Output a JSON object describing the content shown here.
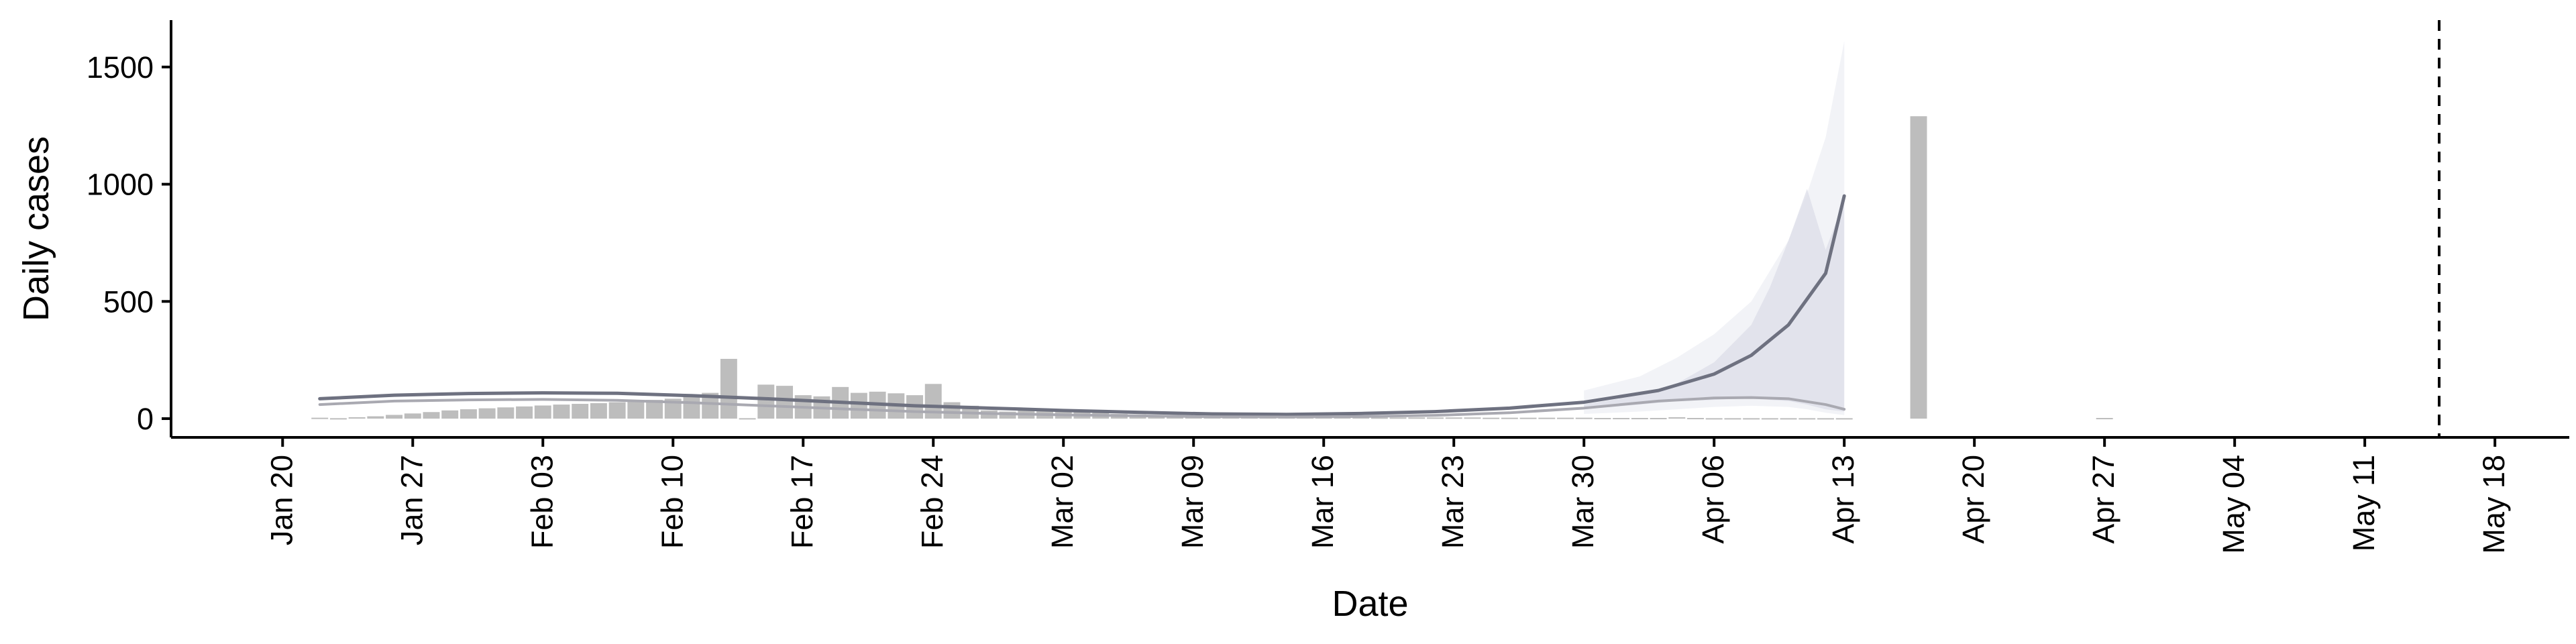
{
  "chart_data": {
    "type": "bar",
    "xlabel": "Date",
    "ylabel": "Daily cases",
    "ylim": [
      -80,
      1700
    ],
    "xlim": [
      "2020-01-14",
      "2020-05-22"
    ],
    "yticks": [
      0,
      500,
      1000,
      1500
    ],
    "xticks": [
      "2020-01-20",
      "2020-01-27",
      "2020-02-03",
      "2020-02-10",
      "2020-02-17",
      "2020-02-24",
      "2020-03-02",
      "2020-03-09",
      "2020-03-16",
      "2020-03-23",
      "2020-03-30",
      "2020-04-06",
      "2020-04-13",
      "2020-04-20",
      "2020-04-27",
      "2020-05-04",
      "2020-05-11",
      "2020-05-18"
    ],
    "xtick_labels": [
      "Jan 20",
      "Jan 27",
      "Feb 03",
      "Feb 10",
      "Feb 17",
      "Feb 24",
      "Mar 02",
      "Mar 09",
      "Mar 16",
      "Mar 23",
      "Mar 30",
      "Apr 06",
      "Apr 13",
      "Apr 20",
      "Apr 27",
      "May 04",
      "May 11",
      "May 18"
    ],
    "vline": "2020-05-15",
    "grid": false,
    "legend": "none",
    "colors": {
      "bars": "#bdbdbd",
      "median_line": "#6e7180",
      "band_line": "#a9a9b1",
      "band_fill_inner": "#dcdee8",
      "band_fill_outer": "#eceef4",
      "vline": "#000000",
      "axis": "#000000"
    },
    "bars": {
      "dates": [
        "2020-01-22",
        "2020-01-23",
        "2020-01-24",
        "2020-01-25",
        "2020-01-26",
        "2020-01-27",
        "2020-01-28",
        "2020-01-29",
        "2020-01-30",
        "2020-01-31",
        "2020-02-01",
        "2020-02-02",
        "2020-02-03",
        "2020-02-04",
        "2020-02-05",
        "2020-02-06",
        "2020-02-07",
        "2020-02-08",
        "2020-02-09",
        "2020-02-10",
        "2020-02-11",
        "2020-02-12",
        "2020-02-13",
        "2020-02-14",
        "2020-02-15",
        "2020-02-16",
        "2020-02-17",
        "2020-02-18",
        "2020-02-19",
        "2020-02-20",
        "2020-02-21",
        "2020-02-22",
        "2020-02-23",
        "2020-02-24",
        "2020-02-25",
        "2020-02-26",
        "2020-02-27",
        "2020-02-28",
        "2020-02-29",
        "2020-03-01",
        "2020-03-02",
        "2020-03-03",
        "2020-03-04",
        "2020-03-05",
        "2020-03-06",
        "2020-03-07",
        "2020-03-08",
        "2020-03-09",
        "2020-03-10",
        "2020-03-11",
        "2020-03-12",
        "2020-03-13",
        "2020-03-14",
        "2020-03-15",
        "2020-03-16",
        "2020-03-17",
        "2020-03-18",
        "2020-03-19",
        "2020-03-20",
        "2020-03-21",
        "2020-03-22",
        "2020-03-23",
        "2020-03-24",
        "2020-03-25",
        "2020-03-26",
        "2020-03-27",
        "2020-03-28",
        "2020-03-29",
        "2020-03-30",
        "2020-03-31",
        "2020-04-01",
        "2020-04-02",
        "2020-04-03",
        "2020-04-04",
        "2020-04-05",
        "2020-04-06",
        "2020-04-07",
        "2020-04-08",
        "2020-04-09",
        "2020-04-10",
        "2020-04-11",
        "2020-04-12",
        "2020-04-13",
        "2020-04-17",
        "2020-04-27"
      ],
      "values": [
        4,
        2,
        6,
        10,
        16,
        22,
        28,
        35,
        40,
        44,
        48,
        52,
        56,
        60,
        63,
        66,
        70,
        74,
        80,
        85,
        95,
        110,
        255,
        2,
        145,
        140,
        100,
        95,
        135,
        110,
        115,
        108,
        100,
        148,
        70,
        55,
        35,
        30,
        45,
        40,
        35,
        28,
        25,
        20,
        18,
        16,
        14,
        12,
        10,
        9,
        8,
        8,
        7,
        7,
        6,
        6,
        6,
        5,
        5,
        5,
        5,
        5,
        5,
        4,
        4,
        4,
        4,
        4,
        4,
        3,
        3,
        3,
        3,
        6,
        3,
        2,
        2,
        2,
        2,
        2,
        2,
        2,
        2,
        1290,
        3
      ]
    },
    "series": [
      {
        "dates": [
          "2020-01-22",
          "2020-01-26",
          "2020-01-30",
          "2020-02-03",
          "2020-02-07",
          "2020-02-11",
          "2020-02-15",
          "2020-02-19",
          "2020-02-23",
          "2020-02-27",
          "2020-03-02",
          "2020-03-06",
          "2020-03-10",
          "2020-03-14",
          "2020-03-18",
          "2020-03-22",
          "2020-03-26",
          "2020-03-30",
          "2020-04-03",
          "2020-04-06",
          "2020-04-08",
          "2020-04-10",
          "2020-04-12",
          "2020-04-13"
        ],
        "values": [
          85,
          100,
          107,
          110,
          108,
          98,
          85,
          70,
          55,
          45,
          35,
          27,
          20,
          18,
          22,
          30,
          45,
          70,
          120,
          190,
          270,
          400,
          620,
          950
        ]
      },
      {
        "dates": [
          "2020-01-22",
          "2020-01-26",
          "2020-01-30",
          "2020-02-03",
          "2020-02-07",
          "2020-02-11",
          "2020-02-15",
          "2020-02-19",
          "2020-02-23",
          "2020-02-27",
          "2020-03-02",
          "2020-03-06",
          "2020-03-10",
          "2020-03-14",
          "2020-03-18",
          "2020-03-22",
          "2020-03-26",
          "2020-03-30",
          "2020-04-03",
          "2020-04-06",
          "2020-04-08",
          "2020-04-10",
          "2020-04-12",
          "2020-04-13"
        ],
        "values": [
          60,
          75,
          80,
          82,
          78,
          68,
          55,
          42,
          30,
          22,
          16,
          12,
          8,
          7,
          9,
          14,
          25,
          45,
          75,
          88,
          90,
          85,
          60,
          40
        ]
      }
    ],
    "bands": [
      {
        "dates": [
          "2020-03-30",
          "2020-04-02",
          "2020-04-04",
          "2020-04-06",
          "2020-04-08",
          "2020-04-09",
          "2020-04-10",
          "2020-04-11",
          "2020-04-12",
          "2020-04-13"
        ],
        "low": [
          40,
          60,
          75,
          80,
          90,
          80,
          75,
          60,
          40,
          30
        ],
        "high": [
          60,
          100,
          150,
          240,
          400,
          560,
          760,
          980,
          720,
          930
        ]
      },
      {
        "dates": [
          "2020-03-30",
          "2020-04-02",
          "2020-04-04",
          "2020-04-06",
          "2020-04-08",
          "2020-04-10",
          "2020-04-11",
          "2020-04-12",
          "2020-04-13"
        ],
        "low": [
          20,
          30,
          40,
          50,
          55,
          50,
          40,
          25,
          15
        ],
        "high": [
          120,
          180,
          260,
          360,
          500,
          760,
          960,
          1200,
          1610
        ]
      }
    ]
  }
}
